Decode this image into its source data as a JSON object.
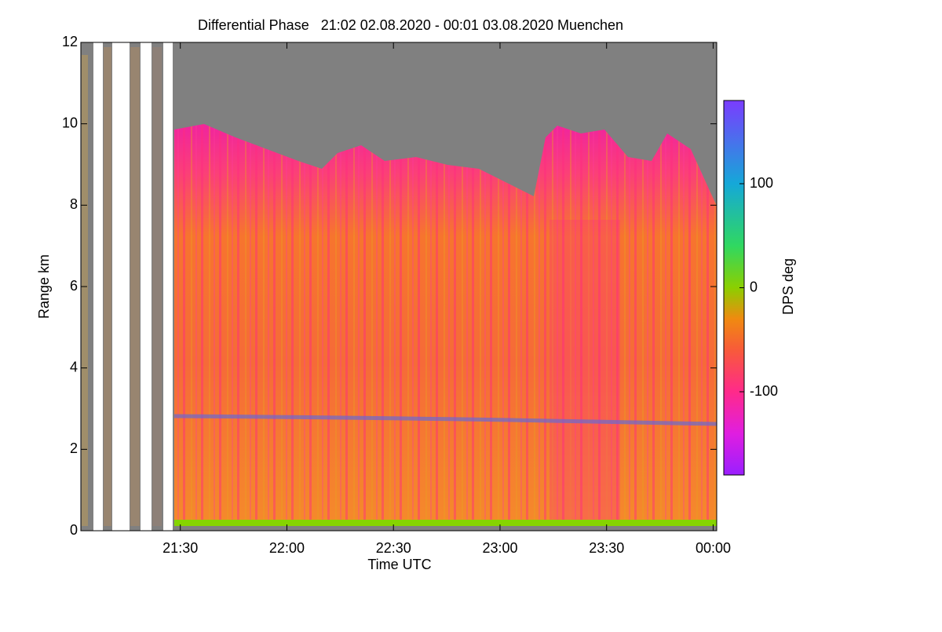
{
  "chart_data": {
    "type": "heatmap",
    "title": "Differential Phase   21:02 02.08.2020 - 00:01 03.08.2020 Muenchen",
    "x_label": "Time UTC",
    "y_label": "Range km",
    "colorbar_label": "DPS deg",
    "xlim": [
      1262,
      1441
    ],
    "xticks": [
      {
        "value": 1290,
        "label": "21:30"
      },
      {
        "value": 1320,
        "label": "22:00"
      },
      {
        "value": 1350,
        "label": "22:30"
      },
      {
        "value": 1380,
        "label": "23:00"
      },
      {
        "value": 1410,
        "label": "23:30"
      },
      {
        "value": 1440,
        "label": "00:00"
      }
    ],
    "ylim": [
      0,
      12
    ],
    "yticks": [
      0,
      2,
      4,
      6,
      8,
      10,
      12
    ],
    "clim": [
      -180,
      180
    ],
    "cticks": [
      -100,
      0,
      100
    ],
    "colorscale": [
      [
        -180,
        "#9a1fff"
      ],
      [
        -140,
        "#e01ee0"
      ],
      [
        -100,
        "#ff2a8a"
      ],
      [
        -60,
        "#f85a3a"
      ],
      [
        -30,
        "#f08a10"
      ],
      [
        0,
        "#8ccf00"
      ],
      [
        40,
        "#30d860"
      ],
      [
        100,
        "#15a8d8"
      ],
      [
        180,
        "#7a3cff"
      ]
    ]
  }
}
